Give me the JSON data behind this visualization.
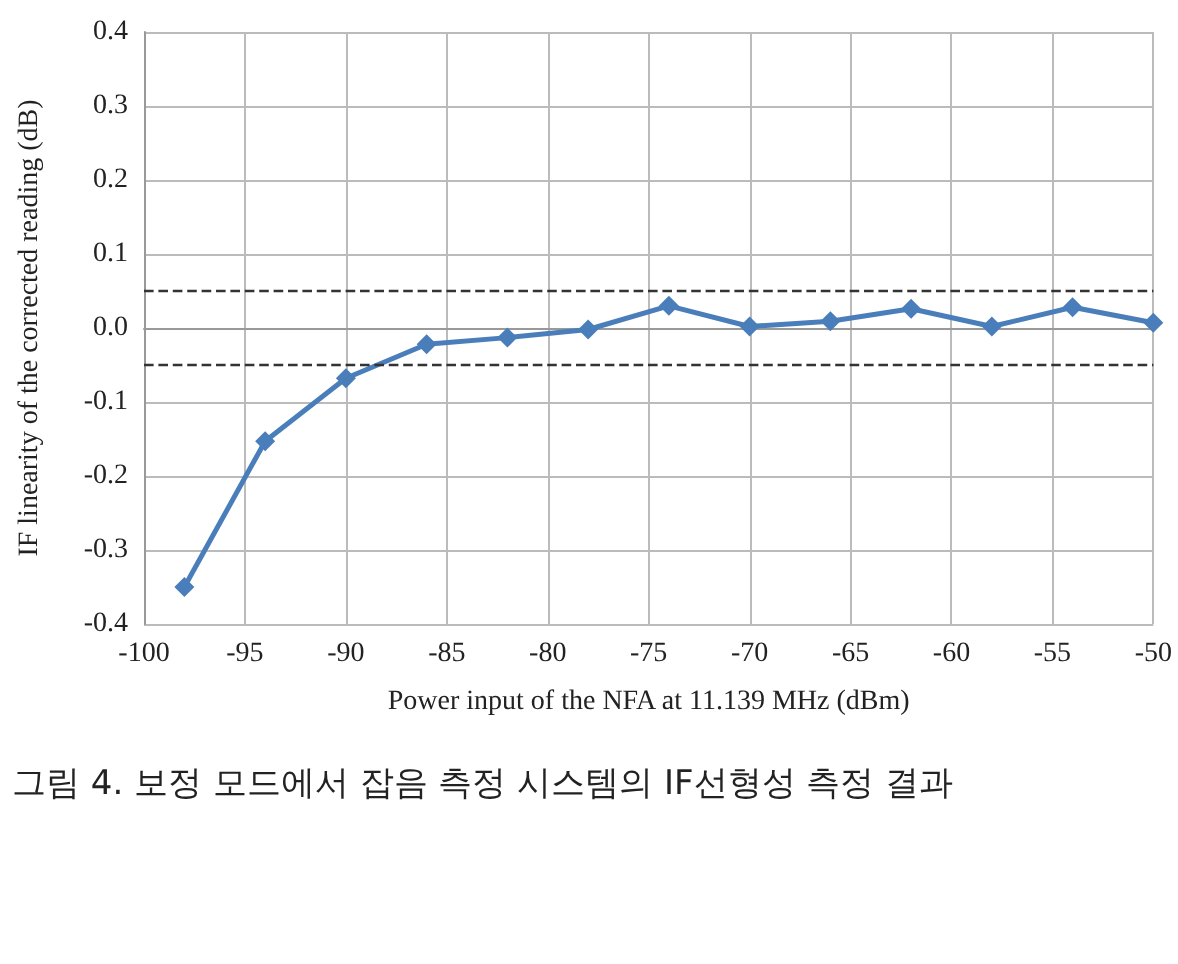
{
  "chart_data": {
    "type": "line",
    "xlabel": "Power input of the NFA at 11.139 MHz (dBm)",
    "ylabel": "IF linearity of the corrected reading (dB)",
    "x": [
      -98,
      -94,
      -90,
      -86,
      -82,
      -78,
      -74,
      -70,
      -66,
      -62,
      -58,
      -54,
      -50
    ],
    "series": [
      {
        "color": "#4a7ebb",
        "values": [
          -0.35,
          -0.153,
          -0.068,
          -0.022,
          -0.013,
          -0.002,
          0.03,
          0.002,
          0.009,
          0.026,
          0.002,
          0.028,
          0.007
        ]
      }
    ],
    "xlim": [
      -100,
      -50
    ],
    "xticks": [
      -100,
      -95,
      -90,
      -85,
      -80,
      -75,
      -70,
      -65,
      -60,
      -55,
      -50
    ],
    "ylim": [
      -0.4,
      0.4
    ],
    "yticks": [
      -0.4,
      -0.3,
      -0.2,
      -0.1,
      {
        "value": 0,
        "label": "0.0"
      },
      0.1,
      0.2,
      0.3,
      0.4
    ],
    "ref_lines": [
      {
        "axis": "y",
        "value": 0.05,
        "color": "#333333",
        "line_style": "dashed"
      },
      {
        "axis": "y",
        "value": -0.05,
        "color": "#333333",
        "line_style": "dashed"
      }
    ],
    "grid": true,
    "marker": "diamond",
    "line_style": "solid",
    "annotations": [
      "그림 4. 보정 모드에서 잡음 측정 시스템의 IF선형성 측정 결과"
    ]
  }
}
